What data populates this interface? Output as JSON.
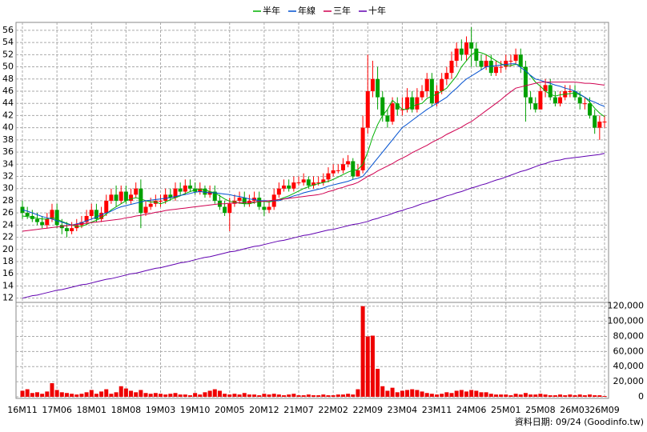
{
  "chart_data": {
    "type": "candlestick",
    "source": "資料日期: 09/24 (Goodinfo.tw)",
    "categories": [
      "16M11",
      null,
      null,
      null,
      null,
      null,
      null,
      "17M06",
      null,
      null,
      null,
      null,
      null,
      null,
      "18M01",
      null,
      null,
      null,
      null,
      null,
      null,
      "18M08",
      null,
      null,
      null,
      null,
      null,
      null,
      "19M03",
      null,
      null,
      null,
      null,
      null,
      null,
      "19M10",
      null,
      null,
      null,
      null,
      null,
      null,
      "20M05",
      null,
      null,
      null,
      null,
      null,
      null,
      "20M12",
      null,
      null,
      null,
      null,
      null,
      null,
      "21M07",
      null,
      null,
      null,
      null,
      null,
      null,
      "22M02",
      null,
      null,
      null,
      null,
      null,
      null,
      "22M09",
      null,
      null,
      null,
      null,
      null,
      null,
      "23M04",
      null,
      null,
      null,
      null,
      null,
      null,
      "23M11",
      null,
      null,
      null,
      null,
      null,
      null,
      "24M06",
      null,
      null,
      null,
      null,
      null,
      null,
      "25M01",
      null,
      null,
      null,
      null,
      null,
      null,
      "25M08",
      null,
      null,
      null,
      null,
      null,
      null,
      "26M03",
      null,
      null,
      null,
      null,
      null,
      "26M09"
    ],
    "open": [
      27,
      26,
      25.5,
      25,
      24.5,
      24,
      25,
      26.5,
      24,
      23.5,
      23,
      23.5,
      24,
      24.5,
      25.5,
      26.5,
      25,
      26,
      28,
      29,
      28,
      29.5,
      28,
      29,
      30,
      26,
      27,
      27.5,
      28,
      28,
      29,
      28.5,
      30,
      29.5,
      30.5,
      30,
      29.5,
      30,
      29,
      29.5,
      28,
      27,
      26,
      27.5,
      28,
      28.5,
      27.5,
      28,
      28.5,
      27,
      26.5,
      27,
      29,
      30,
      30.5,
      30,
      31,
      31,
      31.5,
      30.5,
      31,
      31,
      31.5,
      32.5,
      33,
      33,
      34,
      34.5,
      32,
      33,
      40,
      46,
      48,
      45,
      42,
      41,
      44,
      43,
      43,
      45,
      43,
      45,
      46,
      48,
      44,
      46,
      48,
      49,
      51,
      53,
      52,
      54,
      53,
      51,
      50,
      51,
      49,
      50,
      50,
      51,
      51,
      52,
      50,
      45,
      44,
      43,
      46,
      47,
      45,
      44,
      45,
      46,
      46,
      45,
      44,
      44,
      42,
      40,
      41
    ],
    "high": [
      28,
      27,
      26.5,
      26,
      25.5,
      26,
      27.5,
      27.5,
      25,
      24.5,
      24.5,
      25,
      25.5,
      26.5,
      27.5,
      27.5,
      27,
      29,
      30,
      30.5,
      30.5,
      30.5,
      30,
      31,
      31.5,
      28,
      28.5,
      29,
      29,
      30,
      30,
      31,
      31,
      31.5,
      31.5,
      31,
      31,
      30.5,
      30.5,
      30.5,
      29,
      28,
      28.5,
      29,
      29.5,
      29.5,
      29,
      29.5,
      29.5,
      28,
      28,
      30,
      31,
      31.5,
      31.5,
      32,
      32,
      32.5,
      32,
      32,
      32,
      32.5,
      33.5,
      34,
      34,
      35,
      35.5,
      35,
      34,
      42,
      52,
      51,
      50,
      46,
      43,
      45,
      45,
      45,
      46.5,
      46,
      46.5,
      47,
      49,
      49,
      47,
      49,
      50,
      52.5,
      54,
      54.5,
      55,
      56.5,
      54,
      52,
      52,
      52,
      51,
      51,
      52,
      52,
      53,
      53,
      51,
      46,
      45,
      47,
      48,
      48,
      46,
      46,
      47,
      47,
      47,
      46,
      45,
      45,
      43,
      42,
      42
    ],
    "low": [
      25,
      25,
      24.5,
      24,
      23.5,
      23.5,
      24.5,
      23.5,
      22.5,
      22,
      22.5,
      23,
      23.5,
      24,
      25,
      24.5,
      24.5,
      25.5,
      27.5,
      27,
      27.5,
      27.5,
      27.5,
      28.5,
      23.5,
      25.5,
      26.5,
      27,
      27,
      27.5,
      28,
      28,
      29,
      29,
      29.5,
      29,
      29,
      28.5,
      28.5,
      27.5,
      26.5,
      25.5,
      23,
      27,
      27.5,
      27,
      27,
      27.5,
      26.5,
      25.5,
      26,
      26.5,
      28.5,
      29.5,
      29.5,
      29.5,
      30.5,
      30.5,
      30,
      30,
      30.5,
      30.5,
      31,
      32,
      32.5,
      32.5,
      33.5,
      31.5,
      32,
      32.5,
      39,
      45,
      43,
      41,
      40,
      40.5,
      42,
      42,
      42.5,
      42.5,
      42.5,
      44.5,
      45,
      43.5,
      43.5,
      45.5,
      47,
      48,
      50,
      51,
      51,
      50,
      50,
      49.5,
      49.5,
      48.5,
      48.5,
      49,
      49.5,
      50,
      50.5,
      49,
      41,
      43,
      42.5,
      43,
      45,
      44.5,
      43.5,
      43.5,
      44.5,
      45,
      44.5,
      43,
      43,
      41.5,
      39,
      38,
      40
    ],
    "close": [
      26,
      25.5,
      25,
      24.5,
      24,
      25,
      26.5,
      24,
      23.5,
      23,
      23.5,
      24,
      24.5,
      25.5,
      26.5,
      25,
      26,
      28,
      29,
      28,
      29.5,
      28,
      29,
      30,
      26,
      27,
      27.5,
      28,
      28,
      29,
      28.5,
      30,
      29.5,
      30.5,
      30,
      29.5,
      30,
      29,
      29.5,
      28,
      27,
      26,
      27.5,
      28,
      28.5,
      27.5,
      28,
      28.5,
      27,
      26.5,
      27,
      29,
      30,
      30.5,
      30,
      31,
      31,
      31.5,
      30.5,
      31,
      31,
      31.5,
      32.5,
      33,
      33,
      34,
      34.5,
      32,
      33,
      40,
      46,
      48,
      45,
      42,
      41,
      44,
      43,
      43,
      45,
      43,
      45,
      46,
      48,
      44,
      46,
      48,
      49,
      51,
      53,
      52,
      54,
      53,
      51,
      50,
      51,
      49,
      50,
      50,
      51,
      51,
      52,
      50,
      45,
      44,
      43,
      46,
      47,
      45,
      44,
      45,
      46,
      46,
      45,
      44,
      44,
      42,
      40,
      41,
      41
    ],
    "up_color": "#ff0000",
    "down_color": "#00a000",
    "ylim": [
      11.3,
      57.3
    ],
    "yticks": [
      12,
      14,
      16,
      18,
      20,
      22,
      24,
      26,
      28,
      30,
      32,
      34,
      36,
      38,
      40,
      42,
      44,
      46,
      48,
      50,
      52,
      54,
      56
    ],
    "grid": true,
    "series": [
      {
        "name": "半年",
        "color": "#00b000",
        "values": [
          25.5,
          25.4,
          25.3,
          25.1,
          25.0,
          25.0,
          25.2,
          25.0,
          24.6,
          24.3,
          24.0,
          23.8,
          23.8,
          24.1,
          24.5,
          24.8,
          25.2,
          25.8,
          26.5,
          27.0,
          27.5,
          28.0,
          28.3,
          28.5,
          28.3,
          28.0,
          27.8,
          27.8,
          27.5,
          27.8,
          28.2,
          28.5,
          28.8,
          29.2,
          29.5,
          29.8,
          29.9,
          29.8,
          29.5,
          29.3,
          28.8,
          28.3,
          27.9,
          27.8,
          27.6,
          27.5,
          27.5,
          27.7,
          27.9,
          27.9,
          27.8,
          28.0,
          28.2,
          28.5,
          28.8,
          29.2,
          29.6,
          30.0,
          30.3,
          30.6,
          30.8,
          31.0,
          31.2,
          31.5,
          31.9,
          32.3,
          32.7,
          33.0,
          33.1,
          34.0,
          36.0,
          38.5,
          40.5,
          42.0,
          43.0,
          44.5,
          43.8,
          43.0,
          43.0,
          43.5,
          43.8,
          44.0,
          44.8,
          45.2,
          45.5,
          46.0,
          46.5,
          47.5,
          48.5,
          50.0,
          51.0,
          52.0,
          52.5,
          52.3,
          52.0,
          51.5,
          51.0,
          50.5,
          50.2,
          50.2,
          50.4,
          50.3,
          49.5,
          48.5,
          47.5,
          46.8,
          46.0,
          45.5,
          45.2,
          45.4,
          45.5,
          45.6,
          45.7,
          45.4,
          45.0,
          44.2,
          43.2,
          42.4,
          41.8
        ]
      },
      {
        "name": "年線",
        "color": "#0050d0",
        "values": [
          26.5,
          26.3,
          26.0,
          25.7,
          25.4,
          25.2,
          25.0,
          24.7,
          24.5,
          24.2,
          24.0,
          24.2,
          24.4,
          24.7,
          25.0,
          25.3,
          25.7,
          26.0,
          26.3,
          26.7,
          27.0,
          27.2,
          27.4,
          27.6,
          27.8,
          28.0,
          28.1,
          28.2,
          28.3,
          28.4,
          28.5,
          28.7,
          28.9,
          29.0,
          29.2,
          29.4,
          29.5,
          29.4,
          29.3,
          29.3,
          29.2,
          29.1,
          29.0,
          28.8,
          28.7,
          28.5,
          28.3,
          28.2,
          28.0,
          28.0,
          28.0,
          28.0,
          28.0,
          28.3,
          28.5,
          28.8,
          29.0,
          29.3,
          29.5,
          29.7,
          29.9,
          30.1,
          30.4,
          30.6,
          30.8,
          31.0,
          31.2,
          31.5,
          31.7,
          32.0,
          33.0,
          34.0,
          35.0,
          36.0,
          37.0,
          38.0,
          39.0,
          40.0,
          40.6,
          41.2,
          41.8,
          42.4,
          43.0,
          43.5,
          44.0,
          44.5,
          45.0,
          45.8,
          46.5,
          47.3,
          48.0,
          48.5,
          49.0,
          49.5,
          50.0,
          50.1,
          50.2,
          50.3,
          50.4,
          50.5,
          50.5,
          49.9,
          49.3,
          48.6,
          48.0,
          47.8,
          47.5,
          47.3,
          47.0,
          46.8,
          46.5,
          46.3,
          46.0,
          45.5,
          45.0,
          44.5,
          44.2,
          43.8,
          43.5
        ]
      },
      {
        "name": "三年",
        "color": "#d00050",
        "values": [
          23.0,
          23.1,
          23.2,
          23.3,
          23.4,
          23.5,
          23.6,
          23.7,
          23.8,
          23.9,
          24.0,
          24.1,
          24.2,
          24.3,
          24.4,
          24.5,
          24.6,
          24.7,
          24.8,
          24.9,
          25.0,
          25.2,
          25.3,
          25.5,
          25.6,
          25.8,
          25.9,
          26.1,
          26.2,
          26.4,
          26.5,
          26.6,
          26.7,
          26.8,
          26.9,
          27.0,
          27.1,
          27.2,
          27.3,
          27.4,
          27.5,
          27.5,
          27.6,
          27.6,
          27.7,
          27.7,
          27.8,
          27.8,
          27.9,
          27.9,
          28.0,
          28.1,
          28.2,
          28.3,
          28.4,
          28.5,
          28.6,
          28.7,
          28.8,
          28.9,
          29.0,
          29.2,
          29.5,
          29.7,
          30.0,
          30.2,
          30.5,
          30.7,
          31.0,
          31.5,
          32.0,
          32.4,
          32.9,
          33.3,
          33.7,
          34.1,
          34.6,
          35.0,
          35.4,
          35.9,
          36.3,
          36.7,
          37.1,
          37.6,
          38.0,
          38.4,
          38.9,
          39.3,
          39.7,
          40.1,
          40.6,
          41.0,
          41.6,
          42.2,
          42.8,
          43.4,
          44.0,
          44.6,
          45.3,
          45.9,
          46.5,
          46.7,
          46.9,
          47.1,
          47.3,
          47.5,
          47.5,
          47.5,
          47.5,
          47.5,
          47.5,
          47.5,
          47.5,
          47.4,
          47.3,
          47.3,
          47.2,
          47.1,
          47.0
        ]
      },
      {
        "name": "十年",
        "color": "#6000b0",
        "values": [
          12.0,
          12.2,
          12.4,
          12.5,
          12.7,
          12.9,
          13.1,
          13.3,
          13.4,
          13.6,
          13.8,
          14.0,
          14.2,
          14.3,
          14.5,
          14.7,
          14.9,
          15.1,
          15.2,
          15.4,
          15.6,
          15.8,
          16.0,
          16.1,
          16.3,
          16.5,
          16.7,
          16.9,
          17.0,
          17.2,
          17.4,
          17.6,
          17.8,
          17.9,
          18.1,
          18.3,
          18.5,
          18.7,
          18.8,
          19.0,
          19.2,
          19.4,
          19.6,
          19.7,
          19.9,
          20.1,
          20.3,
          20.5,
          20.6,
          20.8,
          21.0,
          21.2,
          21.4,
          21.5,
          21.7,
          21.9,
          22.1,
          22.3,
          22.4,
          22.6,
          22.8,
          23.0,
          23.2,
          23.3,
          23.5,
          23.7,
          23.9,
          24.1,
          24.2,
          24.4,
          24.6,
          24.9,
          25.1,
          25.4,
          25.6,
          25.9,
          26.2,
          26.4,
          26.7,
          26.9,
          27.2,
          27.5,
          27.7,
          28.0,
          28.2,
          28.5,
          28.8,
          29.0,
          29.3,
          29.5,
          29.8,
          30.1,
          30.3,
          30.6,
          30.8,
          31.1,
          31.4,
          31.6,
          31.9,
          32.2,
          32.5,
          32.8,
          33.0,
          33.3,
          33.6,
          33.9,
          34.1,
          34.4,
          34.6,
          34.7,
          34.9,
          35.0,
          35.1,
          35.2,
          35.3,
          35.4,
          35.5,
          35.6,
          35.8
        ]
      }
    ],
    "volume": {
      "color": "#ee0000",
      "ylim": [
        0,
        125000
      ],
      "yticks": [
        0,
        {
          "value": 20000,
          "label": "20,000"
        },
        {
          "value": 40000,
          "label": "40,000"
        },
        {
          "value": 60000,
          "label": "60,000"
        },
        {
          "value": 80000,
          "label": "80,000"
        },
        {
          "value": 100000,
          "label": "100,000"
        },
        {
          "value": 120000,
          "label": "120,000"
        }
      ],
      "values": [
        8000,
        10000,
        5000,
        6000,
        4000,
        7000,
        18000,
        9000,
        6000,
        5000,
        4000,
        3000,
        4000,
        6000,
        9000,
        4000,
        7000,
        10000,
        4000,
        6000,
        14000,
        11000,
        8000,
        6000,
        9000,
        5000,
        4000,
        5000,
        4000,
        3000,
        4000,
        5000,
        3000,
        3000,
        2000,
        5000,
        3000,
        6000,
        8000,
        10000,
        8000,
        4000,
        3000,
        4000,
        3000,
        5000,
        3000,
        3000,
        2000,
        4000,
        3000,
        4000,
        3000,
        2000,
        3000,
        4000,
        2000,
        2000,
        3000,
        2000,
        2000,
        3000,
        2000,
        2000,
        3000,
        3000,
        4000,
        3000,
        10000,
        120000,
        80000,
        81000,
        37000,
        14000,
        8000,
        12000,
        6000,
        8000,
        9000,
        10000,
        9000,
        7000,
        5000,
        4000,
        3000,
        4000,
        6000,
        5000,
        8000,
        9000,
        7000,
        9000,
        8000,
        6000,
        6000,
        4000,
        3000,
        3000,
        3000,
        2000,
        4000,
        3000,
        5000,
        3000,
        3000,
        4000,
        3000,
        2000,
        2000,
        3000,
        2000,
        3000,
        2000,
        3000,
        2000,
        3000,
        2000,
        2000,
        1000
      ]
    }
  }
}
